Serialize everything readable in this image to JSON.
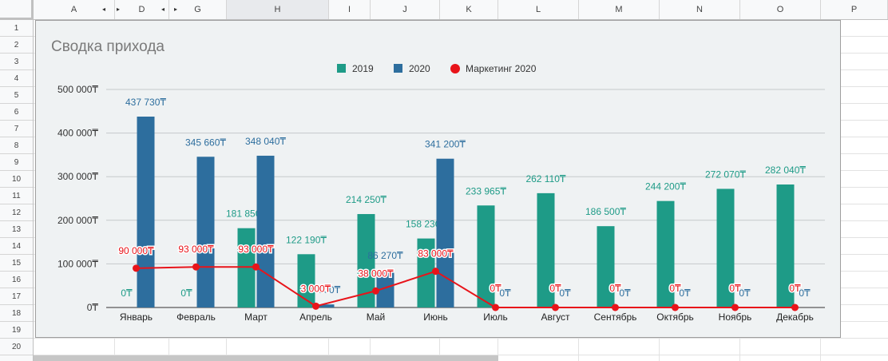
{
  "spreadsheet": {
    "columns": [
      {
        "label": "A",
        "selected": false
      },
      {
        "label": "D",
        "selected": false
      },
      {
        "label": "G",
        "selected": false
      },
      {
        "label": "H",
        "selected": true
      },
      {
        "label": "I",
        "selected": false
      },
      {
        "label": "J",
        "selected": false
      },
      {
        "label": "K",
        "selected": false
      },
      {
        "label": "L",
        "selected": false
      },
      {
        "label": "M",
        "selected": false
      },
      {
        "label": "N",
        "selected": false
      },
      {
        "label": "O",
        "selected": false
      },
      {
        "label": "P",
        "selected": false
      }
    ],
    "rows": [
      "1",
      "2",
      "3",
      "4",
      "5",
      "6",
      "7",
      "8",
      "9",
      "10",
      "11",
      "12",
      "13",
      "14",
      "15",
      "16",
      "17",
      "18",
      "19",
      "20"
    ]
  },
  "chart_data": {
    "type": "bar",
    "title": "Сводка прихода",
    "categories": [
      "Январь",
      "Февраль",
      "Март",
      "Апрель",
      "Май",
      "Июнь",
      "Июль",
      "Август",
      "Сентябрь",
      "Октябрь",
      "Ноябрь",
      "Декабрь"
    ],
    "series": [
      {
        "name": "2019",
        "type": "bar",
        "color": "#1e9b87",
        "values": [
          0,
          0,
          181850,
          122190,
          214250,
          158230,
          233965,
          262110,
          186500,
          244200,
          272070,
          282040
        ],
        "labels": [
          "0₸",
          "0₸",
          "181 850₸",
          "122 190₸",
          "214 250₸",
          "158 230₸",
          "233 965₸",
          "262 110₸",
          "186 500₸",
          "244 200₸",
          "272 070₸",
          "282 040₸"
        ]
      },
      {
        "name": "2020",
        "type": "bar",
        "color": "#2d6e9e",
        "values": [
          437730,
          345660,
          348040,
          7000,
          86270,
          341200,
          0,
          0,
          0,
          0,
          0,
          0
        ],
        "labels": [
          "437 730₸",
          "345 660₸",
          "348 040₸",
          "7 000₸",
          "86 270₸",
          "341 200₸",
          "0₸",
          "0₸",
          "0₸",
          "0₸",
          "0₸",
          "0₸"
        ]
      },
      {
        "name": "Маркетинг 2020",
        "type": "line",
        "color": "#e8141a",
        "values": [
          90000,
          93000,
          93000,
          3000,
          38000,
          83000,
          0,
          0,
          0,
          0,
          0,
          0
        ],
        "labels": [
          "90 000₸",
          "93 000₸",
          "93 000₸",
          "3 000₸",
          "38 000₸",
          "83 000₸",
          "0₸",
          "0₸",
          "0₸",
          "0₸",
          "0₸",
          "0₸"
        ]
      }
    ],
    "y_ticks": [
      "0₸",
      "100 000₸",
      "200 000₸",
      "300 000₸",
      "400 000₸",
      "500 000₸"
    ],
    "ylim": [
      0,
      500000
    ],
    "grid": true,
    "legend_position": "top"
  }
}
